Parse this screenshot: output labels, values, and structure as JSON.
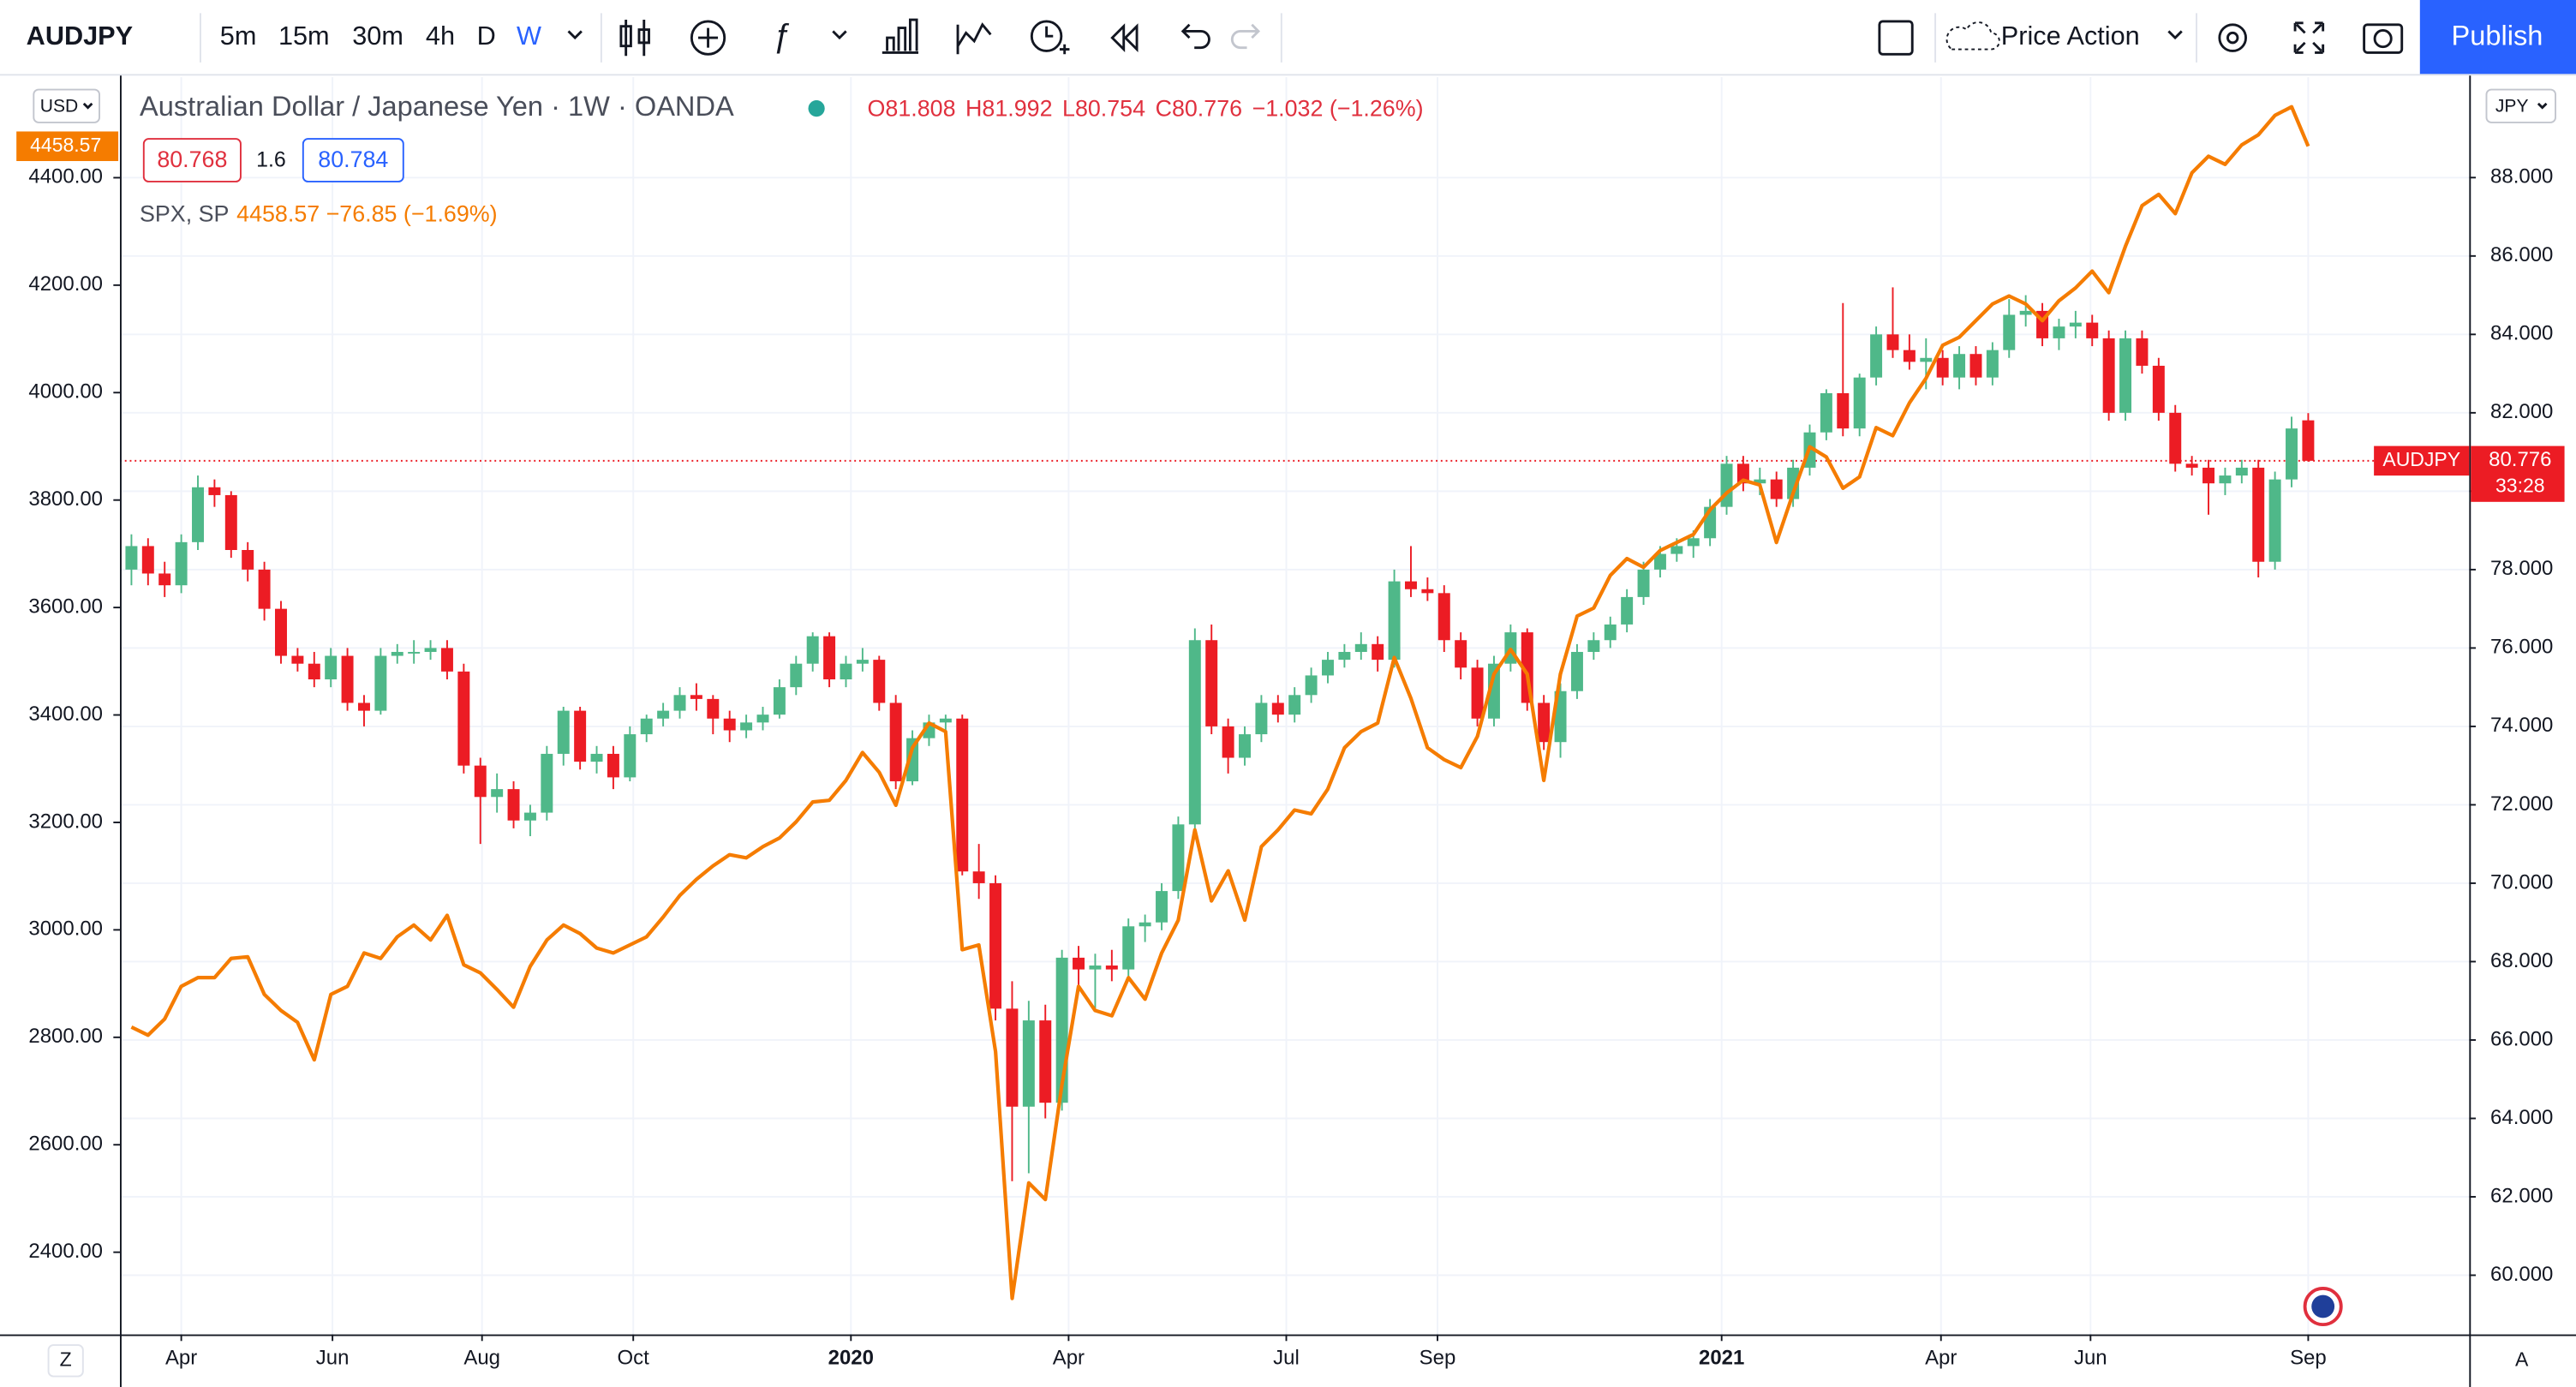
{
  "toolbar": {
    "symbol": "AUDJPY",
    "intervals": [
      "5m",
      "15m",
      "30m",
      "4h",
      "D",
      "W"
    ],
    "layout": "Price Action",
    "publish": "Publish"
  },
  "legend": {
    "title": "Australian Dollar / Japanese Yen · 1W · OANDA",
    "ohlc": [
      "O81.808",
      "H81.992",
      "L80.754",
      "C80.776",
      "−1.032 (−1.26%)"
    ],
    "sell": "80.768",
    "spread": "1.6",
    "buy": "80.784",
    "compare": "SPX, SP",
    "compare_values": "4458.57 −76.85 (−1.69%)"
  },
  "scales": {
    "left_currency": "USD",
    "right_currency": "JPY",
    "left_tag": "4458.57",
    "right_tag_name": "AUDJPY",
    "right_tag_price": "80.776",
    "right_tag_timer": "33:28",
    "bottom_left": "Z",
    "bottom_right": "A"
  },
  "chart_data": {
    "type": "candlestick",
    "grid": true,
    "series": [
      {
        "name": "AUDJPY",
        "type": "candlestick",
        "axis": "y2",
        "up_color": "#4fb889",
        "down_color": "#ec1c24",
        "ohlc": [
          [
            78.0,
            78.9,
            77.6,
            78.6
          ],
          [
            78.6,
            78.8,
            77.6,
            77.9
          ],
          [
            77.9,
            78.2,
            77.3,
            77.6
          ],
          [
            77.6,
            78.9,
            77.4,
            78.7
          ],
          [
            78.7,
            80.4,
            78.5,
            80.1
          ],
          [
            80.1,
            80.3,
            79.6,
            79.9
          ],
          [
            79.9,
            80.0,
            78.3,
            78.5
          ],
          [
            78.5,
            78.7,
            77.7,
            78.0
          ],
          [
            78.0,
            78.2,
            76.7,
            77.0
          ],
          [
            77.0,
            77.2,
            75.6,
            75.8
          ],
          [
            75.8,
            76.0,
            75.4,
            75.6
          ],
          [
            75.6,
            75.9,
            75.0,
            75.2
          ],
          [
            75.2,
            76.0,
            75.0,
            75.8
          ],
          [
            75.8,
            76.0,
            74.4,
            74.6
          ],
          [
            74.6,
            74.8,
            74.0,
            74.4
          ],
          [
            74.4,
            76.0,
            74.3,
            75.8
          ],
          [
            75.8,
            76.1,
            75.6,
            75.9
          ],
          [
            75.9,
            76.2,
            75.6,
            75.9
          ],
          [
            75.9,
            76.2,
            75.7,
            76.0
          ],
          [
            76.0,
            76.2,
            75.2,
            75.4
          ],
          [
            75.4,
            75.6,
            72.8,
            73.0
          ],
          [
            73.0,
            73.2,
            71.0,
            72.2
          ],
          [
            72.2,
            72.8,
            71.8,
            72.4
          ],
          [
            72.4,
            72.6,
            71.4,
            71.6
          ],
          [
            71.6,
            72.0,
            71.2,
            71.8
          ],
          [
            71.8,
            73.5,
            71.6,
            73.3
          ],
          [
            73.3,
            74.5,
            73.0,
            74.4
          ],
          [
            74.4,
            74.5,
            72.9,
            73.1
          ],
          [
            73.1,
            73.5,
            72.8,
            73.3
          ],
          [
            73.3,
            73.5,
            72.4,
            72.7
          ],
          [
            72.7,
            74.0,
            72.6,
            73.8
          ],
          [
            73.8,
            74.3,
            73.6,
            74.2
          ],
          [
            74.2,
            74.6,
            74.0,
            74.4
          ],
          [
            74.4,
            75.0,
            74.2,
            74.8
          ],
          [
            74.8,
            75.1,
            74.4,
            74.7
          ],
          [
            74.7,
            74.8,
            73.8,
            74.2
          ],
          [
            74.2,
            74.4,
            73.6,
            73.9
          ],
          [
            73.9,
            74.3,
            73.7,
            74.1
          ],
          [
            74.1,
            74.5,
            73.9,
            74.3
          ],
          [
            74.3,
            75.2,
            74.2,
            75.0
          ],
          [
            75.0,
            75.8,
            74.8,
            75.6
          ],
          [
            75.6,
            76.4,
            75.4,
            76.3
          ],
          [
            76.3,
            76.4,
            75.0,
            75.2
          ],
          [
            75.2,
            75.8,
            75.0,
            75.6
          ],
          [
            75.6,
            76.0,
            75.4,
            75.7
          ],
          [
            75.7,
            75.8,
            74.4,
            74.6
          ],
          [
            74.6,
            74.8,
            72.4,
            72.6
          ],
          [
            72.6,
            73.9,
            72.5,
            73.7
          ],
          [
            73.7,
            74.3,
            73.5,
            74.1
          ],
          [
            74.1,
            74.3,
            73.8,
            74.2
          ],
          [
            74.2,
            74.3,
            70.2,
            70.3
          ],
          [
            70.3,
            71.0,
            69.6,
            70.0
          ],
          [
            70.0,
            70.2,
            66.5,
            66.8
          ],
          [
            66.8,
            67.5,
            62.4,
            64.3
          ],
          [
            64.3,
            67.0,
            62.6,
            66.5
          ],
          [
            66.5,
            66.9,
            64.0,
            64.4
          ],
          [
            64.4,
            68.3,
            64.2,
            68.1
          ],
          [
            68.1,
            68.4,
            67.4,
            67.8
          ],
          [
            67.8,
            68.2,
            66.8,
            67.9
          ],
          [
            67.9,
            68.3,
            67.5,
            67.8
          ],
          [
            67.8,
            69.1,
            67.6,
            68.9
          ],
          [
            68.9,
            69.2,
            68.5,
            69.0
          ],
          [
            69.0,
            70.0,
            68.8,
            69.8
          ],
          [
            69.8,
            71.7,
            69.6,
            71.5
          ],
          [
            71.5,
            76.5,
            71.3,
            76.2
          ],
          [
            76.2,
            76.6,
            73.8,
            74.0
          ],
          [
            74.0,
            74.2,
            72.8,
            73.2
          ],
          [
            73.2,
            74.0,
            73.0,
            73.8
          ],
          [
            73.8,
            74.8,
            73.6,
            74.6
          ],
          [
            74.6,
            74.8,
            74.1,
            74.3
          ],
          [
            74.3,
            75.0,
            74.1,
            74.8
          ],
          [
            74.8,
            75.5,
            74.6,
            75.3
          ],
          [
            75.3,
            75.9,
            75.1,
            75.7
          ],
          [
            75.7,
            76.1,
            75.5,
            75.9
          ],
          [
            75.9,
            76.4,
            75.7,
            76.1
          ],
          [
            76.1,
            76.3,
            75.4,
            75.7
          ],
          [
            75.7,
            78.0,
            75.5,
            77.7
          ],
          [
            77.7,
            78.6,
            77.3,
            77.5
          ],
          [
            77.5,
            77.8,
            77.2,
            77.4
          ],
          [
            77.4,
            77.6,
            75.9,
            76.2
          ],
          [
            76.2,
            76.4,
            75.2,
            75.5
          ],
          [
            75.5,
            75.7,
            74.0,
            74.2
          ],
          [
            74.2,
            75.8,
            74.0,
            75.6
          ],
          [
            75.6,
            76.6,
            75.4,
            76.4
          ],
          [
            76.4,
            76.5,
            74.4,
            74.6
          ],
          [
            74.6,
            74.8,
            73.4,
            73.6
          ],
          [
            73.6,
            75.1,
            73.2,
            74.9
          ],
          [
            74.9,
            76.1,
            74.7,
            75.9
          ],
          [
            75.9,
            76.4,
            75.7,
            76.2
          ],
          [
            76.2,
            76.8,
            76.0,
            76.6
          ],
          [
            76.6,
            77.5,
            76.4,
            77.3
          ],
          [
            77.3,
            78.2,
            77.1,
            78.0
          ],
          [
            78.0,
            78.6,
            77.8,
            78.4
          ],
          [
            78.4,
            78.8,
            78.2,
            78.6
          ],
          [
            78.6,
            79.0,
            78.3,
            78.8
          ],
          [
            78.8,
            79.8,
            78.6,
            79.6
          ],
          [
            79.6,
            80.9,
            79.4,
            80.7
          ],
          [
            80.7,
            80.9,
            80.0,
            80.2
          ],
          [
            80.2,
            80.6,
            79.9,
            80.3
          ],
          [
            80.3,
            80.5,
            79.6,
            79.8
          ],
          [
            79.8,
            80.8,
            79.6,
            80.6
          ],
          [
            80.6,
            81.7,
            80.4,
            81.5
          ],
          [
            81.5,
            82.6,
            81.3,
            82.5
          ],
          [
            82.5,
            84.8,
            81.4,
            81.6
          ],
          [
            81.6,
            83.0,
            81.4,
            82.9
          ],
          [
            82.9,
            84.2,
            82.7,
            84.0
          ],
          [
            84.0,
            85.2,
            83.4,
            83.6
          ],
          [
            83.6,
            84.0,
            83.1,
            83.3
          ],
          [
            83.3,
            83.9,
            82.6,
            83.4
          ],
          [
            83.4,
            83.6,
            82.7,
            82.9
          ],
          [
            82.9,
            83.7,
            82.6,
            83.5
          ],
          [
            83.5,
            83.7,
            82.7,
            82.9
          ],
          [
            82.9,
            83.8,
            82.7,
            83.6
          ],
          [
            83.6,
            84.9,
            83.4,
            84.5
          ],
          [
            84.5,
            85.0,
            84.2,
            84.6
          ],
          [
            84.6,
            84.8,
            83.7,
            83.9
          ],
          [
            83.9,
            84.4,
            83.6,
            84.2
          ],
          [
            84.2,
            84.6,
            83.9,
            84.3
          ],
          [
            84.3,
            84.5,
            83.7,
            83.9
          ],
          [
            83.9,
            84.1,
            81.8,
            82.0
          ],
          [
            82.0,
            84.1,
            81.8,
            83.9
          ],
          [
            83.9,
            84.1,
            83.0,
            83.2
          ],
          [
            83.2,
            83.4,
            81.8,
            82.0
          ],
          [
            82.0,
            82.2,
            80.5,
            80.7
          ],
          [
            80.7,
            80.9,
            80.4,
            80.6
          ],
          [
            80.6,
            80.8,
            79.4,
            80.2
          ],
          [
            80.2,
            80.6,
            79.9,
            80.4
          ],
          [
            80.4,
            80.8,
            80.2,
            80.6
          ],
          [
            80.6,
            80.8,
            77.8,
            78.2
          ],
          [
            78.2,
            80.5,
            78.0,
            80.3
          ],
          [
            80.3,
            81.9,
            80.1,
            81.6
          ],
          [
            81.808,
            81.992,
            80.754,
            80.776
          ]
        ]
      },
      {
        "name": "SPX, SP",
        "type": "line",
        "color": "#f57c00",
        "values": [
          2819,
          2804,
          2834,
          2895,
          2911,
          2911,
          2947,
          2950,
          2880,
          2850,
          2828,
          2758,
          2880,
          2895,
          2957,
          2947,
          2987,
          3009,
          2981,
          3027,
          2935,
          2920,
          2889,
          2856,
          2932,
          2981,
          3009,
          2993,
          2966,
          2957,
          2972,
          2987,
          3024,
          3064,
          3094,
          3119,
          3140,
          3134,
          3155,
          3171,
          3201,
          3238,
          3241,
          3278,
          3330,
          3293,
          3232,
          3339,
          3385,
          3369,
          2963,
          2972,
          2773,
          2314,
          2529,
          2498,
          2712,
          2895,
          2850,
          2840,
          2911,
          2871,
          2957,
          3018,
          3186,
          3054,
          3110,
          3018,
          3155,
          3186,
          3223,
          3216,
          3262,
          3339,
          3369,
          3385,
          3507,
          3431,
          3339,
          3317,
          3302,
          3360,
          3476,
          3522,
          3476,
          3278,
          3476,
          3584,
          3599,
          3660,
          3691,
          3675,
          3706,
          3721,
          3736,
          3782,
          3813,
          3837,
          3828,
          3721,
          3813,
          3899,
          3880,
          3822,
          3843,
          3935,
          3920,
          3981,
          4027,
          4088,
          4103,
          4134,
          4165,
          4180,
          4165,
          4134,
          4171,
          4195,
          4226,
          4186,
          4272,
          4348,
          4369,
          4333,
          4409,
          4440,
          4425,
          4461,
          4480,
          4516,
          4532,
          4458.57
        ]
      }
    ],
    "ylim": [
      2247,
      4587
    ],
    "yticks": [
      {
        "value": 2400,
        "label": "2400.00"
      },
      {
        "value": 2600,
        "label": "2600.00"
      },
      {
        "value": 2800,
        "label": "2800.00"
      },
      {
        "value": 3000,
        "label": "3000.00"
      },
      {
        "value": 3200,
        "label": "3200.00"
      },
      {
        "value": 3400,
        "label": "3400.00"
      },
      {
        "value": 3600,
        "label": "3600.00"
      },
      {
        "value": 3800,
        "label": "3800.00"
      },
      {
        "value": 4000,
        "label": "4000.00"
      },
      {
        "value": 4200,
        "label": "4200.00"
      },
      {
        "value": 4400,
        "label": "4400.00"
      }
    ],
    "y2lim": [
      58.49,
      90.56
    ],
    "y2ticks": [
      {
        "value": 60,
        "label": "60.000"
      },
      {
        "value": 62,
        "label": "62.000"
      },
      {
        "value": 64,
        "label": "64.000"
      },
      {
        "value": 66,
        "label": "66.000"
      },
      {
        "value": 68,
        "label": "68.000"
      },
      {
        "value": 70,
        "label": "70.000"
      },
      {
        "value": 72,
        "label": "72.000"
      },
      {
        "value": 74,
        "label": "74.000"
      },
      {
        "value": 76,
        "label": "76.000"
      },
      {
        "value": 78,
        "label": "78.000"
      },
      {
        "value": 80,
        "label": "80.000"
      },
      {
        "value": 82,
        "label": "82.000"
      },
      {
        "value": 84,
        "label": "84.000"
      },
      {
        "value": 86,
        "label": "86.000"
      },
      {
        "value": 88,
        "label": "88.000"
      }
    ],
    "xticks": [
      {
        "value": 3,
        "label": "Apr"
      },
      {
        "value": 12.1,
        "label": "Jun"
      },
      {
        "value": 21.1,
        "label": "Aug"
      },
      {
        "value": 30.2,
        "label": "Oct"
      },
      {
        "value": 43.3,
        "label": "2020"
      },
      {
        "value": 56.4,
        "label": "Apr"
      },
      {
        "value": 69.5,
        "label": "Jul"
      },
      {
        "value": 78.6,
        "label": "Sep"
      },
      {
        "value": 95.7,
        "label": "2021"
      },
      {
        "value": 108.9,
        "label": "Apr"
      },
      {
        "value": 117.9,
        "label": "Jun"
      },
      {
        "value": 131,
        "label": "Sep"
      }
    ]
  }
}
